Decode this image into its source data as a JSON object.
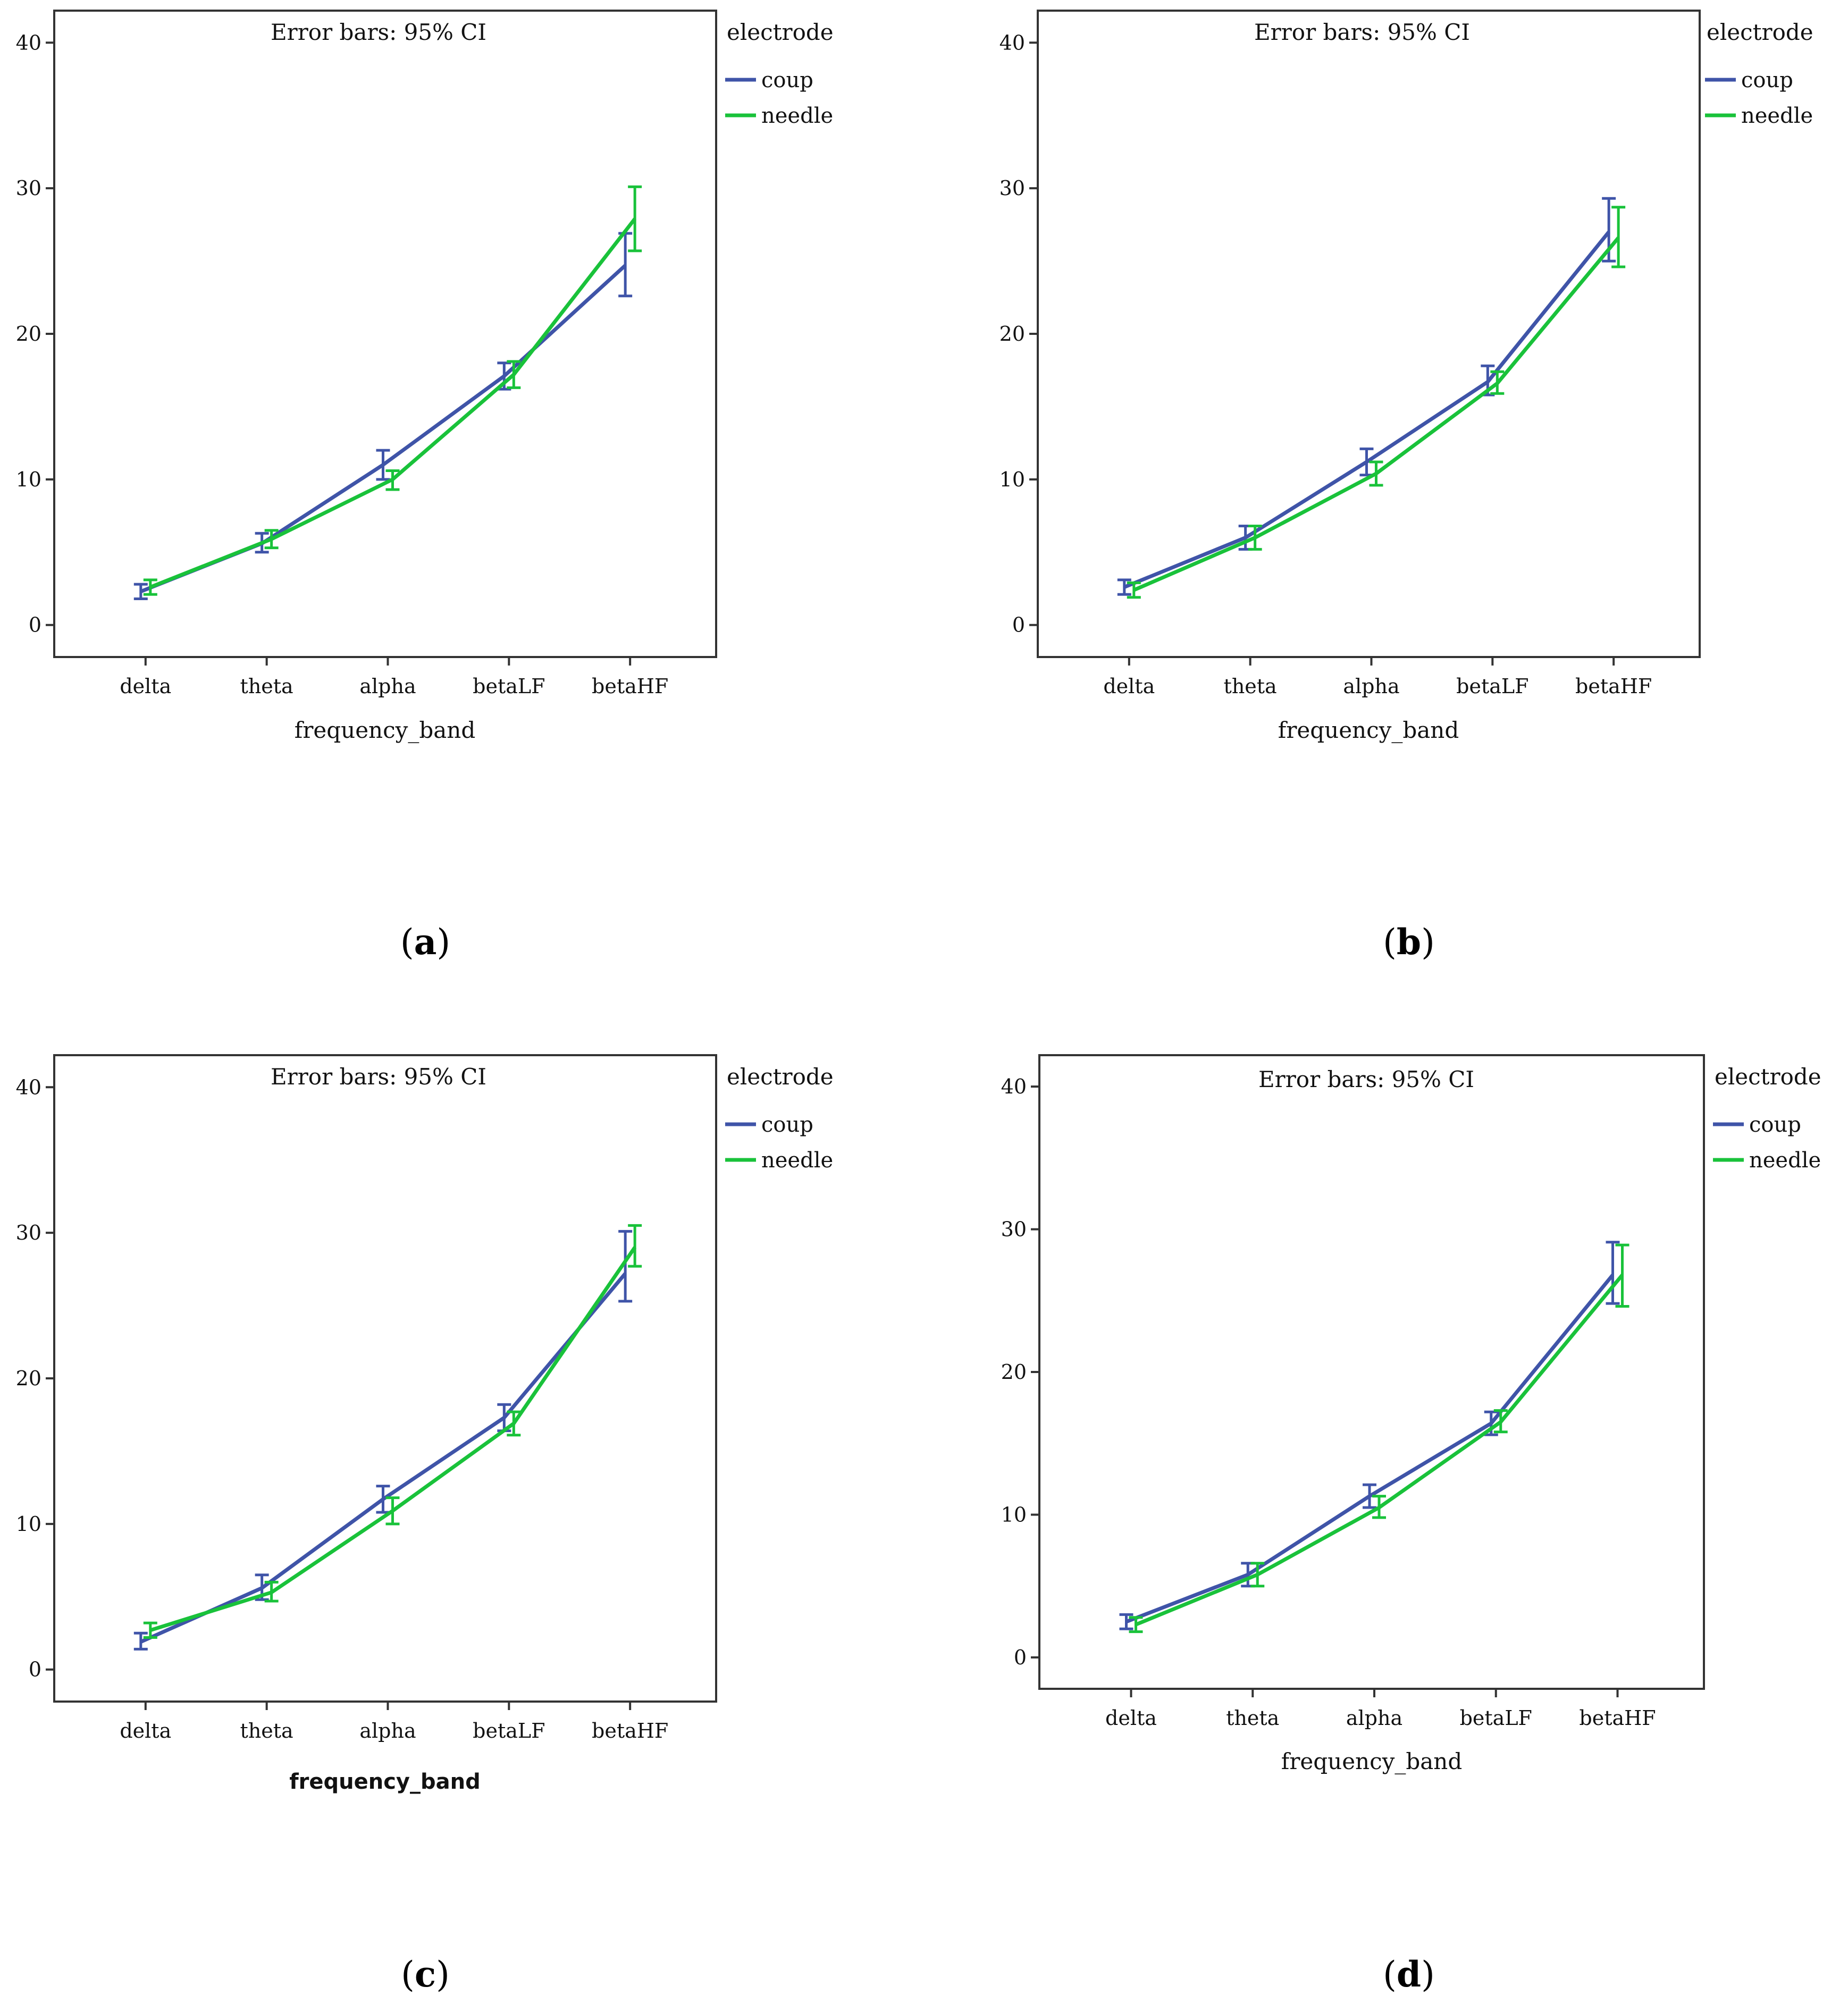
{
  "colors": {
    "coup": "#3f54a8",
    "needle": "#19c23a",
    "frame": "#333333"
  },
  "chart_data": [
    {
      "panel": "a",
      "type": "line",
      "annotation": "Error bars: 95% CI",
      "xlabel": "frequency_band",
      "ylabel": "",
      "categories": [
        "delta",
        "theta",
        "alpha",
        "betaLF",
        "betaHF"
      ],
      "ylim": [
        -2.2,
        42.2
      ],
      "yticks": [
        0,
        10,
        20,
        30,
        40
      ],
      "legend": {
        "title": "electrode",
        "position": "right-outside"
      },
      "series": [
        {
          "name": "coup",
          "values": [
            2.3,
            5.6,
            11.0,
            17.1,
            24.7
          ],
          "ci_low": [
            1.8,
            5.0,
            10.0,
            16.2,
            22.6
          ],
          "ci_high": [
            2.8,
            6.3,
            12.0,
            18.0,
            26.9
          ]
        },
        {
          "name": "needle",
          "values": [
            2.6,
            5.9,
            10.0,
            17.2,
            27.9
          ],
          "ci_low": [
            2.1,
            5.3,
            9.3,
            16.3,
            25.7
          ],
          "ci_high": [
            3.1,
            6.5,
            10.6,
            18.1,
            30.1
          ]
        }
      ]
    },
    {
      "panel": "b",
      "type": "line",
      "annotation": "Error bars: 95% CI",
      "xlabel": "frequency_band",
      "ylabel": "",
      "categories": [
        "delta",
        "theta",
        "alpha",
        "betaLF",
        "betaHF"
      ],
      "ylim": [
        -2.2,
        42.2
      ],
      "yticks": [
        0,
        10,
        20,
        30,
        40
      ],
      "legend": {
        "title": "electrode",
        "position": "right-outside"
      },
      "series": [
        {
          "name": "coup",
          "values": [
            2.6,
            6.0,
            11.2,
            16.7,
            27.0
          ],
          "ci_low": [
            2.1,
            5.2,
            10.3,
            15.8,
            25.0
          ],
          "ci_high": [
            3.1,
            6.8,
            12.1,
            17.8,
            29.3
          ]
        },
        {
          "name": "needle",
          "values": [
            2.4,
            6.0,
            10.4,
            16.6,
            26.6
          ],
          "ci_low": [
            1.9,
            5.2,
            9.6,
            15.9,
            24.6
          ],
          "ci_high": [
            2.9,
            6.8,
            11.2,
            17.4,
            28.7
          ]
        }
      ]
    },
    {
      "panel": "c",
      "type": "line",
      "annotation": "Error bars: 95% CI",
      "xlabel": "frequency_band",
      "ylabel": "",
      "categories": [
        "delta",
        "theta",
        "alpha",
        "betaLF",
        "betaHF"
      ],
      "ylim": [
        -2.2,
        42.2
      ],
      "yticks": [
        0,
        10,
        20,
        30,
        40
      ],
      "legend": {
        "title": "electrode",
        "position": "right-outside"
      },
      "series": [
        {
          "name": "coup",
          "values": [
            1.9,
            5.6,
            11.7,
            17.3,
            27.2
          ],
          "ci_low": [
            1.4,
            4.8,
            10.8,
            16.4,
            25.3
          ],
          "ci_high": [
            2.5,
            6.5,
            12.6,
            18.2,
            30.1
          ]
        },
        {
          "name": "needle",
          "values": [
            2.7,
            5.3,
            10.9,
            16.9,
            29.0
          ],
          "ci_low": [
            2.2,
            4.7,
            10.0,
            16.1,
            27.7
          ],
          "ci_high": [
            3.2,
            6.0,
            11.8,
            17.7,
            30.5
          ]
        }
      ]
    },
    {
      "panel": "d",
      "type": "line",
      "annotation": "Error bars: 95% CI",
      "xlabel": "frequency_band",
      "ylabel": "",
      "categories": [
        "delta",
        "theta",
        "alpha",
        "betaLF",
        "betaHF"
      ],
      "ylim": [
        -2.2,
        42.2
      ],
      "yticks": [
        0,
        10,
        20,
        30,
        40
      ],
      "legend": {
        "title": "electrode",
        "position": "right-outside"
      },
      "series": [
        {
          "name": "coup",
          "values": [
            2.5,
            5.8,
            11.3,
            16.4,
            26.8
          ],
          "ci_low": [
            2.0,
            5.0,
            10.5,
            15.6,
            24.8
          ],
          "ci_high": [
            3.0,
            6.6,
            12.1,
            17.2,
            29.1
          ]
        },
        {
          "name": "needle",
          "values": [
            2.3,
            5.8,
            10.5,
            16.5,
            26.8
          ],
          "ci_low": [
            1.8,
            5.0,
            9.8,
            15.8,
            24.6
          ],
          "ci_high": [
            2.8,
            6.6,
            11.3,
            17.3,
            28.9
          ]
        }
      ]
    }
  ],
  "panel_labels": [
    {
      "open": "(",
      "letter": "a",
      "close": ")"
    },
    {
      "open": "(",
      "letter": "b",
      "close": ")"
    },
    {
      "open": "(",
      "letter": "c",
      "close": ")"
    },
    {
      "open": "(",
      "letter": "d",
      "close": ")"
    }
  ]
}
